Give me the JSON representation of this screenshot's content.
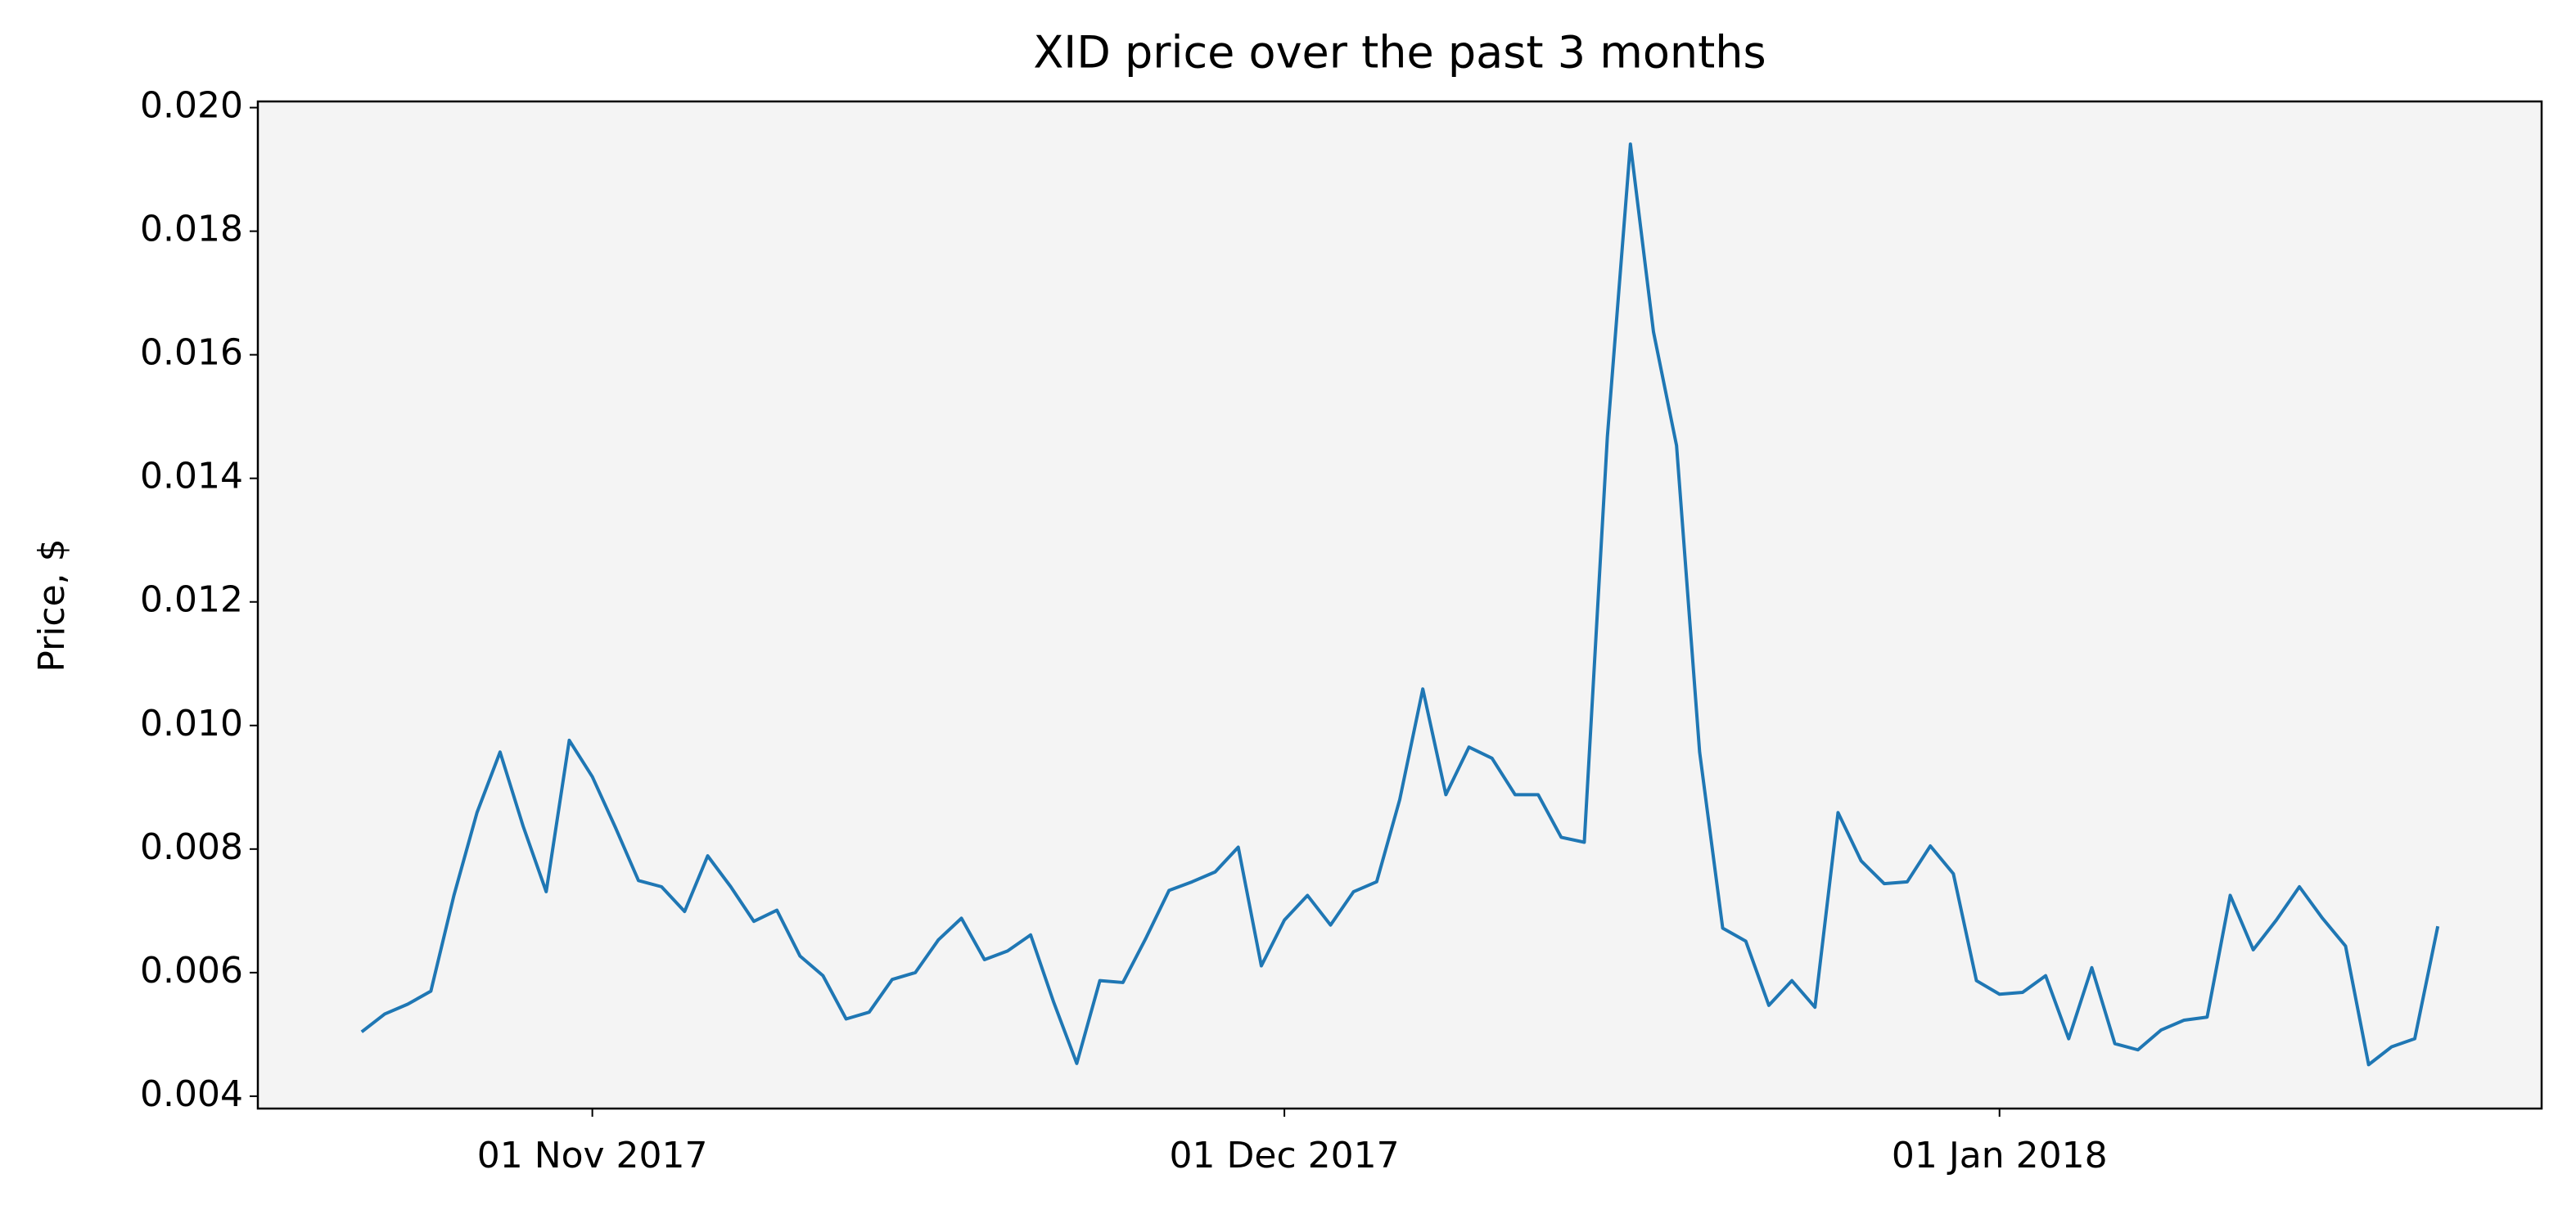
{
  "chart_data": {
    "type": "line",
    "title": "XID price over the past 3 months",
    "y_label": "Price, $",
    "x": [
      "2017-10-22",
      "2017-10-23",
      "2017-10-24",
      "2017-10-25",
      "2017-10-26",
      "2017-10-27",
      "2017-10-28",
      "2017-10-29",
      "2017-10-30",
      "2017-10-31",
      "2017-11-01",
      "2017-11-02",
      "2017-11-03",
      "2017-11-04",
      "2017-11-05",
      "2017-11-06",
      "2017-11-07",
      "2017-11-08",
      "2017-11-09",
      "2017-11-10",
      "2017-11-11",
      "2017-11-12",
      "2017-11-13",
      "2017-11-14",
      "2017-11-15",
      "2017-11-16",
      "2017-11-17",
      "2017-11-18",
      "2017-11-19",
      "2017-11-20",
      "2017-11-21",
      "2017-11-22",
      "2017-11-23",
      "2017-11-24",
      "2017-11-25",
      "2017-11-26",
      "2017-11-27",
      "2017-11-28",
      "2017-11-29",
      "2017-11-30",
      "2017-12-01",
      "2017-12-02",
      "2017-12-03",
      "2017-12-04",
      "2017-12-05",
      "2017-12-06",
      "2017-12-07",
      "2017-12-08",
      "2017-12-09",
      "2017-12-10",
      "2017-12-11",
      "2017-12-12",
      "2017-12-13",
      "2017-12-14",
      "2017-12-15",
      "2017-12-16",
      "2017-12-17",
      "2017-12-18",
      "2017-12-19",
      "2017-12-20",
      "2017-12-21",
      "2017-12-22",
      "2017-12-23",
      "2017-12-24",
      "2017-12-25",
      "2017-12-26",
      "2017-12-27",
      "2017-12-28",
      "2017-12-29",
      "2017-12-30",
      "2017-12-31",
      "2018-01-01",
      "2018-01-02",
      "2018-01-03",
      "2018-01-04",
      "2018-01-05",
      "2018-01-06",
      "2018-01-07",
      "2018-01-08",
      "2018-01-09",
      "2018-01-10",
      "2018-01-11",
      "2018-01-12",
      "2018-01-13",
      "2018-01-14",
      "2018-01-15",
      "2018-01-16",
      "2018-01-17",
      "2018-01-18",
      "2018-01-19",
      "2018-01-20"
    ],
    "series": [
      {
        "color": "#1f77b4",
        "values": [
          0.00504,
          0.00533,
          0.00549,
          0.0057,
          0.00725,
          0.00859,
          0.00957,
          0.00837,
          0.00731,
          0.00976,
          0.00917,
          0.00835,
          0.00749,
          0.00739,
          0.00699,
          0.00789,
          0.00739,
          0.00683,
          0.00701,
          0.00627,
          0.00595,
          0.00525,
          0.00536,
          0.00589,
          0.006,
          0.00653,
          0.00688,
          0.00621,
          0.00635,
          0.00661,
          0.00552,
          0.00453,
          0.00587,
          0.00584,
          0.00656,
          0.00733,
          0.00747,
          0.00763,
          0.00803,
          0.00611,
          0.00685,
          0.00725,
          0.00677,
          0.00731,
          0.00747,
          0.0088,
          0.01059,
          0.00888,
          0.00965,
          0.00947,
          0.00888,
          0.00888,
          0.00819,
          0.00811,
          0.01467,
          0.01941,
          0.01637,
          0.01453,
          0.00957,
          0.00672,
          0.00651,
          0.00547,
          0.00587,
          0.00544,
          0.00859,
          0.00781,
          0.00744,
          0.00747,
          0.00805,
          0.0076,
          0.00587,
          0.00565,
          0.00568,
          0.00595,
          0.00493,
          0.00608,
          0.00485,
          0.00475,
          0.00507,
          0.00523,
          0.00528,
          0.00725,
          0.00637,
          0.00685,
          0.00739,
          0.00688,
          0.00643,
          0.00451,
          0.0048,
          0.00493,
          0.00675
        ]
      }
    ],
    "xlim": [
      "2017-10-17T12:00:00Z",
      "2018-01-24T12:00:00Z"
    ],
    "xticks": [
      {
        "value": "2017-11-01",
        "label": "01 Nov 2017"
      },
      {
        "value": "2017-12-01",
        "label": "01 Dec 2017"
      },
      {
        "value": "2018-01-01",
        "label": "01 Jan 2018"
      }
    ],
    "ylim": [
      0.0038,
      0.0201
    ],
    "yticks": [
      0.004,
      0.006,
      0.008,
      {
        "value": 0.01,
        "label": "0.010"
      },
      0.012,
      0.014,
      0.016,
      0.018,
      {
        "value": 0.02,
        "label": "0.020"
      }
    ],
    "background": "#f4f4f4",
    "grid": false
  }
}
